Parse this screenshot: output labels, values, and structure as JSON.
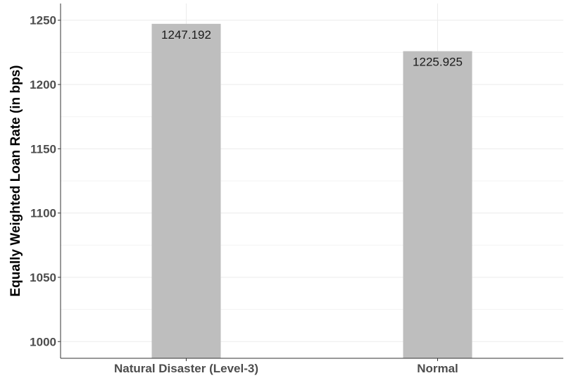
{
  "chart_data": {
    "type": "bar",
    "categories": [
      "Natural Disaster (Level-3)",
      "Normal"
    ],
    "values": [
      1247.192,
      1225.925
    ],
    "data_labels": [
      "1247.192",
      "1225.925"
    ],
    "title": "",
    "xlabel": "",
    "ylabel": "Equally Weighted Loan Rate (in bps)",
    "ylim": [
      987,
      1263
    ],
    "yticks": [
      1000,
      1050,
      1100,
      1150,
      1200,
      1250
    ],
    "ytick_labels": [
      "1000",
      "1050",
      "1100",
      "1150",
      "1200",
      "1250"
    ],
    "grid": true,
    "legend": "none",
    "colors": {
      "bar": "#bebebe",
      "grid": "#ebebeb",
      "axis": "#333333"
    }
  }
}
